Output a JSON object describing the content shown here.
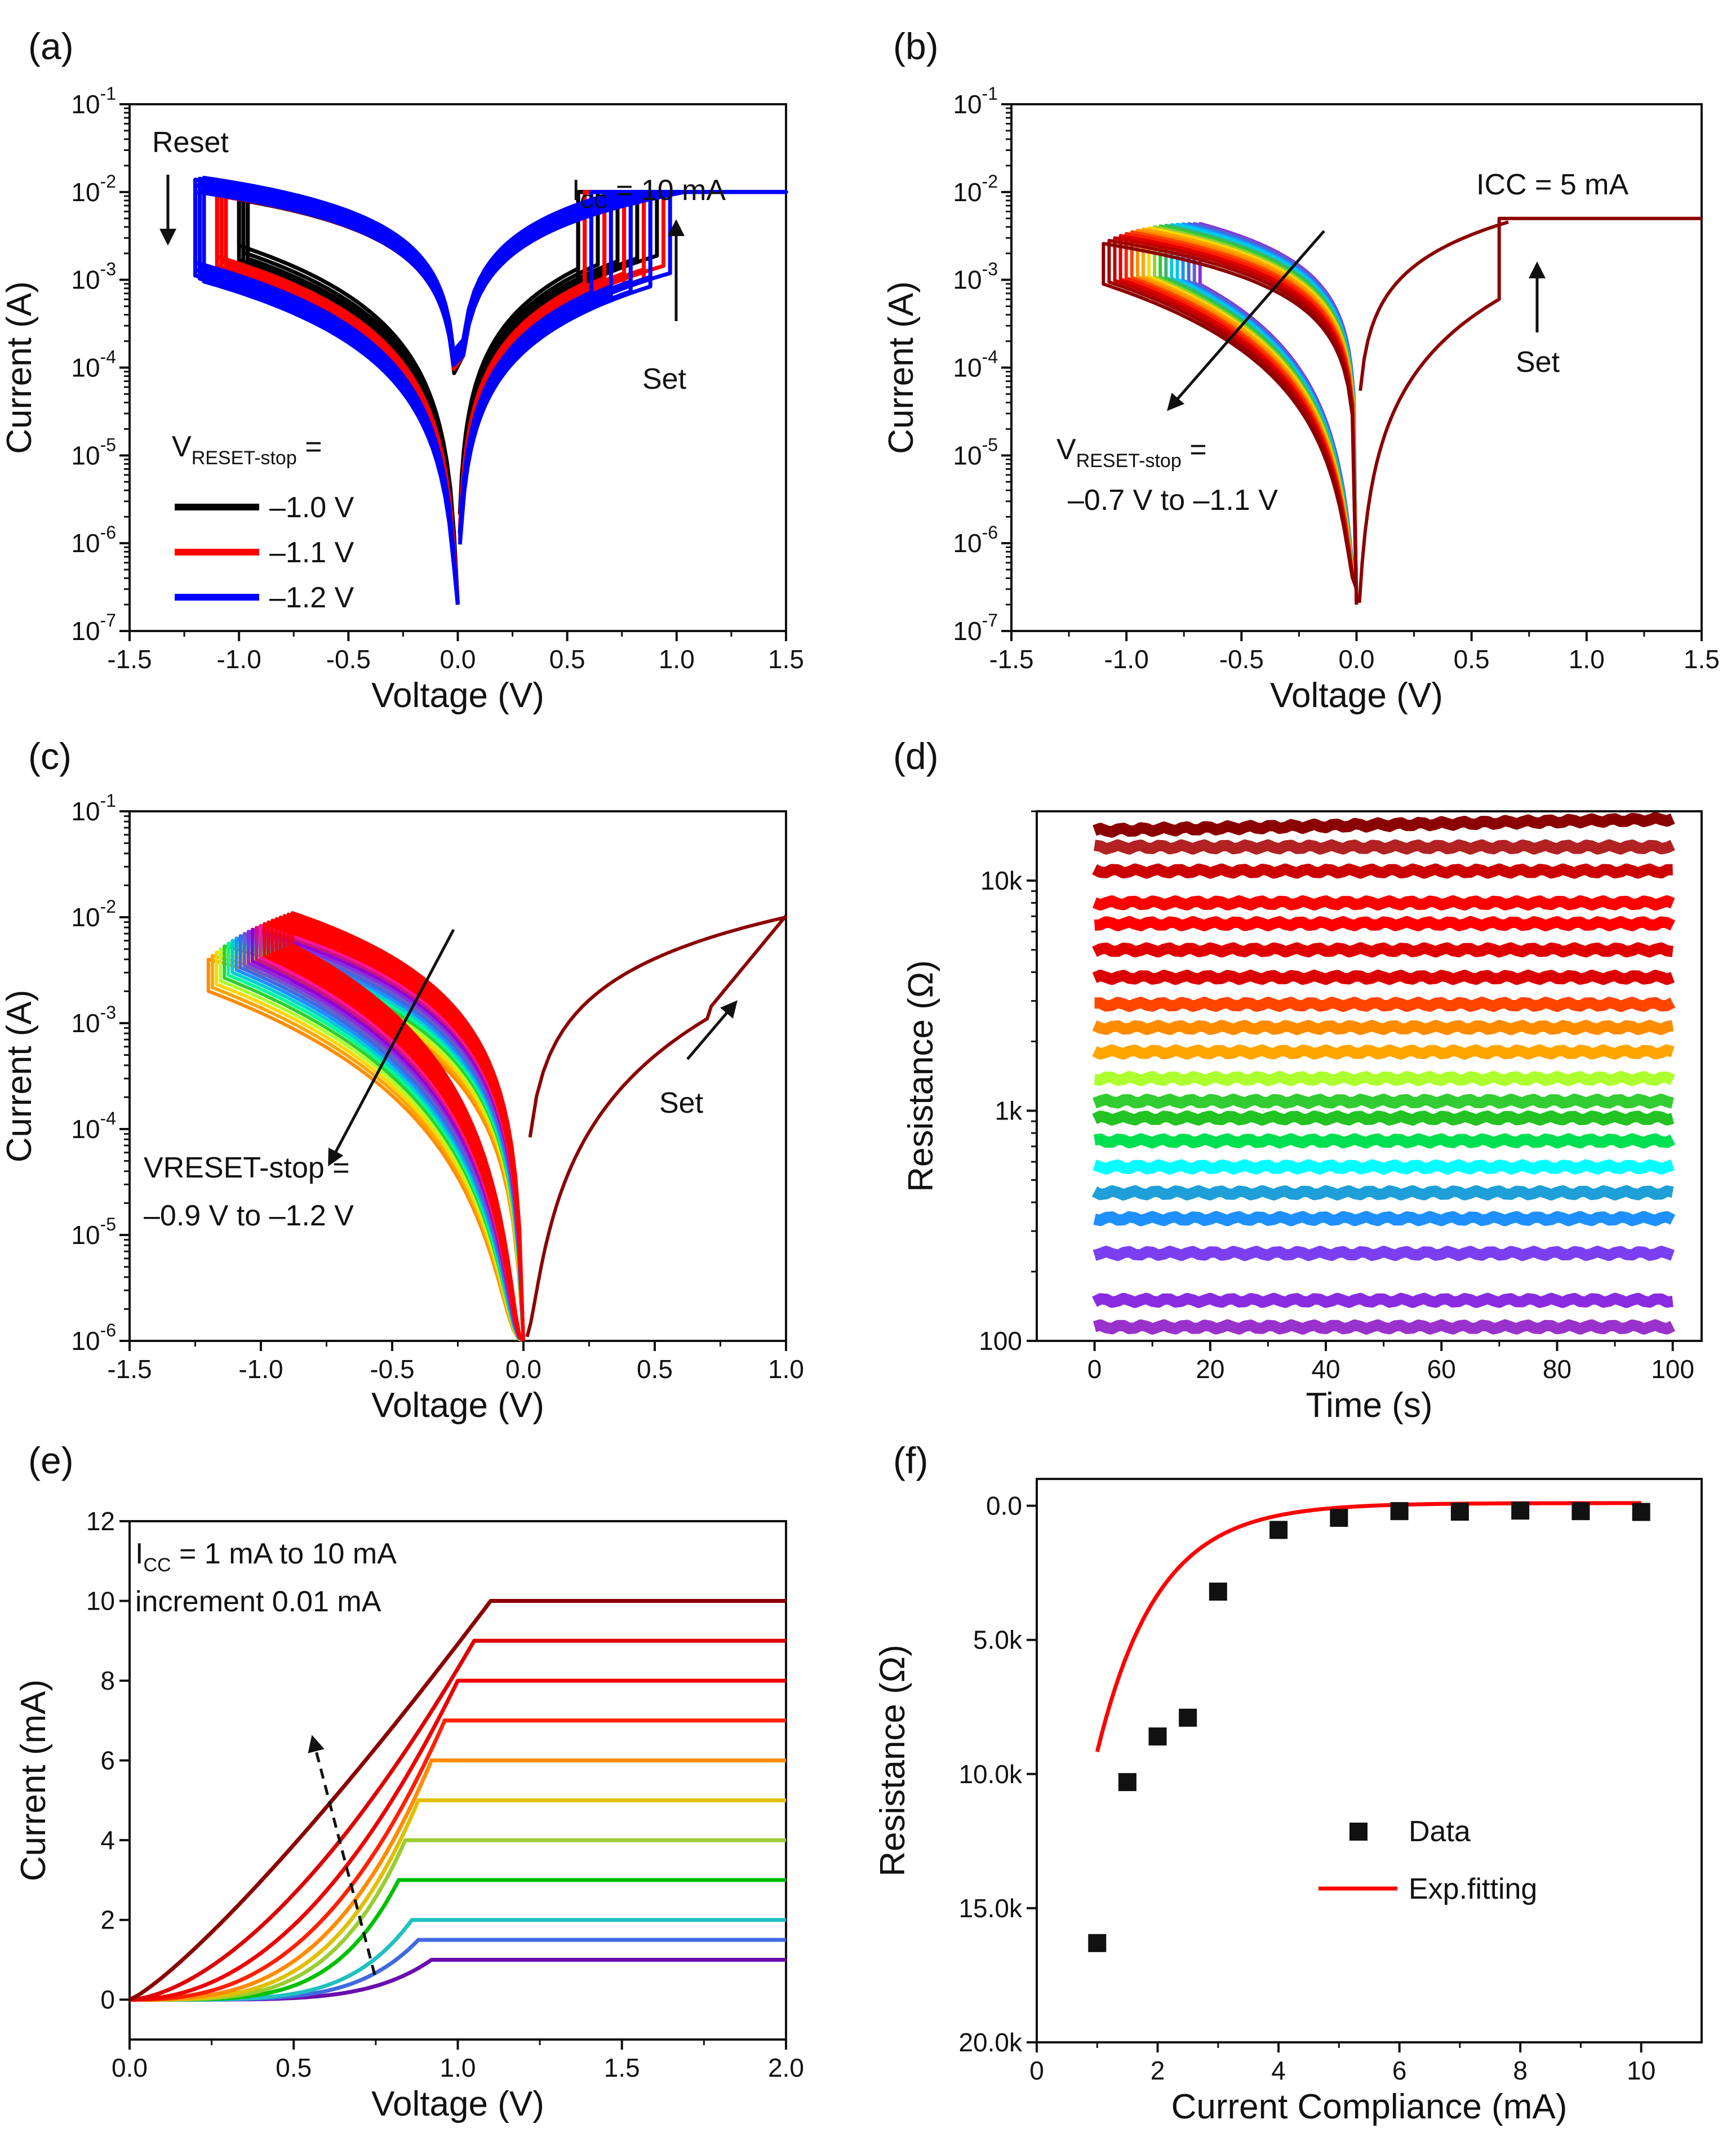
{
  "chart_data": [
    {
      "panel": "(a)",
      "type": "line",
      "xlabel": "Voltage (V)",
      "ylabel": "Current (A)",
      "xlim": [
        -1.5,
        1.5
      ],
      "ylim": [
        1e-07,
        0.1
      ],
      "yscale": "log",
      "xticks": [
        -1.5,
        -1.0,
        -0.5,
        0.0,
        0.5,
        1.0,
        1.5
      ],
      "xtick_labels": [
        "-1.5",
        "-1.0",
        "-0.5",
        "0.0",
        "0.5",
        "1.0",
        "1.5"
      ],
      "ytick_labels": [
        {
          "b": "10",
          "e": "-7"
        },
        {
          "b": "10",
          "e": "-6"
        },
        {
          "b": "10",
          "e": "-5"
        },
        {
          "b": "10",
          "e": "-4"
        },
        {
          "b": "10",
          "e": "-3"
        },
        {
          "b": "10",
          "e": "-2"
        },
        {
          "b": "10",
          "e": "-1"
        }
      ],
      "compliance": 0.01,
      "series": [
        {
          "name": "–1.0 V",
          "color": "#000000",
          "count": 6,
          "vreset": -1.0
        },
        {
          "name": "–1.1 V",
          "color": "#ff0000",
          "count": 9,
          "vreset": -1.1
        },
        {
          "name": "–1.2 V",
          "color": "#0000ff",
          "count": 9,
          "vreset": -1.2
        }
      ],
      "annotations": {
        "reset": "Reset",
        "set": "Set",
        "icc_main": "I",
        "icc_sub": "CC",
        "icc_value": " = 10 mA",
        "legend_title_main": "V",
        "legend_title_sub": "RESET-stop",
        "legend_title_tail": " ="
      }
    },
    {
      "panel": "(b)",
      "type": "line",
      "xlabel": "Voltage (V)",
      "ylabel": "Current (A)",
      "xlim": [
        -1.5,
        1.5
      ],
      "ylim": [
        1e-07,
        0.1
      ],
      "yscale": "log",
      "xticks": [
        -1.5,
        -1.0,
        -0.5,
        0.0,
        0.5,
        1.0,
        1.5
      ],
      "xtick_labels": [
        "-1.5",
        "-1.0",
        "-0.5",
        "0.0",
        "0.5",
        "1.0",
        "1.5"
      ],
      "ytick_labels": [
        {
          "b": "10",
          "e": "-7"
        },
        {
          "b": "10",
          "e": "-6"
        },
        {
          "b": "10",
          "e": "-5"
        },
        {
          "b": "10",
          "e": "-4"
        },
        {
          "b": "10",
          "e": "-3"
        },
        {
          "b": "10",
          "e": "-2"
        },
        {
          "b": "10",
          "e": "-1"
        }
      ],
      "compliance": 0.005,
      "set_voltage": 0.62,
      "vreset_range": [
        -0.7,
        -1.1
      ],
      "colors": [
        "#8b2be2",
        "#6a5acd",
        "#4169e1",
        "#1e90ff",
        "#00bfff",
        "#00ced1",
        "#3cb371",
        "#32cd32",
        "#9acd32",
        "#ffd700",
        "#ffa500",
        "#ff8c00",
        "#ff4500",
        "#ff2000",
        "#e00000",
        "#c00000",
        "#a00000",
        "#8b0000"
      ],
      "annotations": {
        "icc": "ICC = 5 mA",
        "set": "Set",
        "vreset_main": "V",
        "vreset_sub": "RESET-stop",
        "vreset_tail": " =",
        "vreset_range": "–0.7 V to –1.1 V"
      }
    },
    {
      "panel": "(c)",
      "type": "line",
      "xlabel": "Voltage (V)",
      "ylabel": "Current (A)",
      "xlim": [
        -1.5,
        1.0
      ],
      "ylim": [
        1e-06,
        0.1
      ],
      "yscale": "log",
      "xticks": [
        -1.5,
        -1.0,
        -0.5,
        0.0,
        0.5,
        1.0
      ],
      "xtick_labels": [
        "-1.5",
        "-1.0",
        "-0.5",
        "0.0",
        "0.5",
        "1.0"
      ],
      "ytick_labels": [
        {
          "b": "10",
          "e": "-6"
        },
        {
          "b": "10",
          "e": "-5"
        },
        {
          "b": "10",
          "e": "-4"
        },
        {
          "b": "10",
          "e": "-3"
        },
        {
          "b": "10",
          "e": "-2"
        },
        {
          "b": "10",
          "e": "-1"
        }
      ],
      "compliance": 0.01,
      "vreset_range": [
        -0.9,
        -1.2
      ],
      "colors": [
        "#ff8c00",
        "#ffa500",
        "#ffd700",
        "#adff2f",
        "#32cd32",
        "#00fa9a",
        "#00ced1",
        "#1e90ff",
        "#4169e1",
        "#6a5acd",
        "#8b2be2",
        "#9400d3",
        "#c71585",
        "#ff1493",
        "#ff0000",
        "#ff0000",
        "#ff0000",
        "#ff0000",
        "#ff0000",
        "#ff0000",
        "#ff0000",
        "#ff0000"
      ],
      "annotations": {
        "set": "Set",
        "vreset_line1": "VRESET-stop =",
        "vreset_line2": "–0.9 V to –1.2 V"
      }
    },
    {
      "panel": "(d)",
      "type": "scatter",
      "xlabel": "Time (s)",
      "ylabel": "Resistance (Ω)",
      "xlim": [
        -10,
        105
      ],
      "ylim": [
        100,
        20000
      ],
      "yscale": "log",
      "xticks": [
        0,
        20,
        40,
        60,
        80,
        100
      ],
      "xtick_labels": [
        "0",
        "20",
        "40",
        "60",
        "80",
        "100"
      ],
      "ytick_labels": [
        "100",
        "1k",
        "10k"
      ],
      "series": [
        {
          "r": 16500,
          "color": "#8b0000"
        },
        {
          "r": 14000,
          "color": "#b22222"
        },
        {
          "r": 11000,
          "color": "#cc0000"
        },
        {
          "r": 8000,
          "color": "#ff0000"
        },
        {
          "r": 6500,
          "color": "#ff0000"
        },
        {
          "r": 5000,
          "color": "#e00000"
        },
        {
          "r": 3800,
          "color": "#dd0000"
        },
        {
          "r": 2900,
          "color": "#ff4500"
        },
        {
          "r": 2300,
          "color": "#ff8c00"
        },
        {
          "r": 1800,
          "color": "#ffa500"
        },
        {
          "r": 1380,
          "color": "#adff2f"
        },
        {
          "r": 1100,
          "color": "#32cd32"
        },
        {
          "r": 930,
          "color": "#22c322"
        },
        {
          "r": 740,
          "color": "#00e050"
        },
        {
          "r": 570,
          "color": "#00ffff"
        },
        {
          "r": 440,
          "color": "#1e9fd7"
        },
        {
          "r": 340,
          "color": "#1e90ff"
        },
        {
          "r": 240,
          "color": "#7b3ff2"
        },
        {
          "r": 150,
          "color": "#8a2be2"
        },
        {
          "r": 115,
          "color": "#9932cc"
        }
      ]
    },
    {
      "panel": "(e)",
      "type": "line",
      "xlabel": "Voltage (V)",
      "ylabel": "Current (mA)",
      "xlim": [
        0,
        2.0
      ],
      "ylim": [
        -1,
        12
      ],
      "xticks": [
        0.0,
        0.5,
        1.0,
        1.5,
        2.0
      ],
      "xtick_labels": [
        "0.0",
        "0.5",
        "1.0",
        "1.5",
        "2.0"
      ],
      "yticks": [
        0,
        2,
        4,
        6,
        8,
        10,
        12
      ],
      "ytick_labels": [
        "0",
        "2",
        "4",
        "6",
        "8",
        "10",
        "12"
      ],
      "series": [
        {
          "icc": 1.0,
          "vknee": 0.92,
          "color": "#6a0dad"
        },
        {
          "icc": 1.5,
          "vknee": 0.88,
          "color": "#4169e1"
        },
        {
          "icc": 2.0,
          "vknee": 0.86,
          "color": "#20c0c0"
        },
        {
          "icc": 3.0,
          "vknee": 0.82,
          "color": "#00c000"
        },
        {
          "icc": 4.0,
          "vknee": 0.84,
          "color": "#9acd32"
        },
        {
          "icc": 5.0,
          "vknee": 0.88,
          "color": "#e0c000"
        },
        {
          "icc": 6.0,
          "vknee": 0.92,
          "color": "#ff8c00"
        },
        {
          "icc": 7.0,
          "vknee": 0.96,
          "color": "#ff2000"
        },
        {
          "icc": 8.0,
          "vknee": 1.0,
          "color": "#ee0000"
        },
        {
          "icc": 9.0,
          "vknee": 1.05,
          "color": "#dd0000"
        },
        {
          "icc": 10.0,
          "vknee": 1.1,
          "color": "#8b0000"
        }
      ],
      "annotations": {
        "icc_main": "I",
        "icc_sub": "CC",
        "icc_tail": " = 1 mA to 10 mA",
        "increment": "increment 0.01 mA"
      }
    },
    {
      "panel": "(f)",
      "type": "scatter",
      "xlabel": "Current Compliance (mA)",
      "ylabel": "Resistance (Ω)",
      "xlim": [
        0,
        11
      ],
      "ylim": [
        20000,
        -1000
      ],
      "yreversed": true,
      "xticks": [
        0,
        2,
        4,
        6,
        8,
        10
      ],
      "xtick_labels": [
        "0",
        "2",
        "4",
        "6",
        "8",
        "10"
      ],
      "yticks": [
        0,
        5000,
        10000,
        15000,
        20000
      ],
      "ytick_labels": [
        "0.0",
        "5.0k",
        "10.0k",
        "15.0k",
        "20.0k"
      ],
      "x": [
        1,
        1.5,
        2,
        2.5,
        3,
        4,
        5,
        6,
        7,
        8,
        9,
        10
      ],
      "y": [
        16300,
        10300,
        8600,
        7900,
        3200,
        900,
        450,
        200,
        220,
        180,
        200,
        230
      ],
      "fit": {
        "name": "Exp.fitting",
        "color": "#ff0000",
        "A": 56000,
        "tau": 0.8,
        "y0": -100,
        "x_range": [
          1,
          10
        ]
      },
      "legend": {
        "data": "Data",
        "fit": "Exp.fitting"
      }
    }
  ]
}
